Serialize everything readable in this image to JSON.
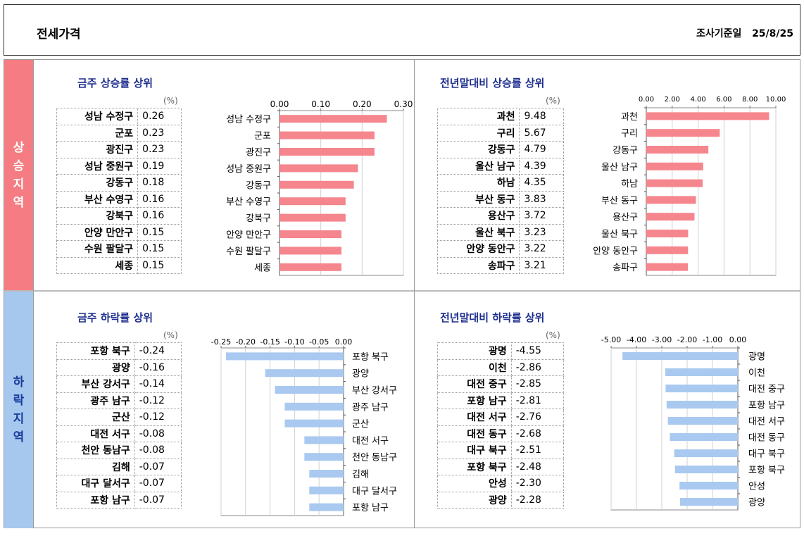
{
  "header": {
    "title": "전세가격",
    "survey_label": "조사기준일",
    "survey_date": "25/8/25"
  },
  "sections": {
    "rise_label": "상승지역",
    "fall_label": "하락지역"
  },
  "unit": "(%)",
  "chart_data": [
    {
      "id": "week-rise",
      "type": "bar",
      "title": "금주 상승률 상위",
      "orientation": "horizontal",
      "xlim": [
        0,
        0.3
      ],
      "ticks": [
        0.0,
        0.1,
        0.2,
        0.3
      ],
      "tick_labels": [
        "0.00",
        "0.10",
        "0.20",
        "0.30"
      ],
      "axis_position": "top",
      "bar_color": "#f5868d",
      "rows": [
        {
          "name": "성남 수정구",
          "value": 0.26,
          "label": "0.26"
        },
        {
          "name": "군포",
          "value": 0.23,
          "label": "0.23"
        },
        {
          "name": "광진구",
          "value": 0.23,
          "label": "0.23"
        },
        {
          "name": "성남 중원구",
          "value": 0.19,
          "label": "0.19"
        },
        {
          "name": "강동구",
          "value": 0.18,
          "label": "0.18"
        },
        {
          "name": "부산 수영구",
          "value": 0.16,
          "label": "0.16"
        },
        {
          "name": "강북구",
          "value": 0.16,
          "label": "0.16"
        },
        {
          "name": "안양 만안구",
          "value": 0.15,
          "label": "0.15"
        },
        {
          "name": "수원 팔달구",
          "value": 0.15,
          "label": "0.15"
        },
        {
          "name": "세종",
          "value": 0.15,
          "label": "0.15"
        }
      ]
    },
    {
      "id": "ytd-rise",
      "type": "bar",
      "title": "전년말대비 상승률 상위",
      "orientation": "horizontal",
      "xlim": [
        0,
        10
      ],
      "ticks": [
        0,
        2,
        4,
        6,
        8,
        10
      ],
      "tick_labels": [
        "0.00",
        "2.00",
        "4.00",
        "6.00",
        "8.00",
        "10.00"
      ],
      "axis_position": "top",
      "bar_color": "#f5868d",
      "rows": [
        {
          "name": "과천",
          "value": 9.48,
          "label": "9.48"
        },
        {
          "name": "구리",
          "value": 5.67,
          "label": "5.67"
        },
        {
          "name": "강동구",
          "value": 4.79,
          "label": "4.79"
        },
        {
          "name": "울산 남구",
          "value": 4.39,
          "label": "4.39"
        },
        {
          "name": "하남",
          "value": 4.35,
          "label": "4.35"
        },
        {
          "name": "부산 동구",
          "value": 3.83,
          "label": "3.83"
        },
        {
          "name": "용산구",
          "value": 3.72,
          "label": "3.72"
        },
        {
          "name": "울산 북구",
          "value": 3.23,
          "label": "3.23"
        },
        {
          "name": "안양 동안구",
          "value": 3.22,
          "label": "3.22"
        },
        {
          "name": "송파구",
          "value": 3.21,
          "label": "3.21"
        }
      ]
    },
    {
      "id": "week-fall",
      "type": "bar",
      "title": "금주 하락률 상위",
      "orientation": "horizontal",
      "xlim": [
        -0.25,
        0
      ],
      "ticks": [
        -0.25,
        -0.2,
        -0.15,
        -0.1,
        -0.05,
        0.0
      ],
      "tick_labels": [
        "-0.25",
        "-0.20",
        "-0.15",
        "-0.10",
        "-0.05",
        "0.00"
      ],
      "axis_position": "top",
      "bar_color": "#a9c9f0",
      "rows": [
        {
          "name": "포항 북구",
          "value": -0.24,
          "label": "-0.24"
        },
        {
          "name": "광양",
          "value": -0.16,
          "label": "-0.16"
        },
        {
          "name": "부산 강서구",
          "value": -0.14,
          "label": "-0.14"
        },
        {
          "name": "광주 남구",
          "value": -0.12,
          "label": "-0.12"
        },
        {
          "name": "군산",
          "value": -0.12,
          "label": "-0.12"
        },
        {
          "name": "대전 서구",
          "value": -0.08,
          "label": "-0.08"
        },
        {
          "name": "천안 동남구",
          "value": -0.08,
          "label": "-0.08"
        },
        {
          "name": "김해",
          "value": -0.07,
          "label": "-0.07"
        },
        {
          "name": "대구 달서구",
          "value": -0.07,
          "label": "-0.07"
        },
        {
          "name": "포항 남구",
          "value": -0.07,
          "label": "-0.07"
        }
      ]
    },
    {
      "id": "ytd-fall",
      "type": "bar",
      "title": "전년말대비 하락률 상위",
      "orientation": "horizontal",
      "xlim": [
        -5,
        0
      ],
      "ticks": [
        -5,
        -4,
        -3,
        -2,
        -1,
        0
      ],
      "tick_labels": [
        "-5.00",
        "-4.00",
        "-3.00",
        "-2.00",
        "-1.00",
        "0.00"
      ],
      "axis_position": "top",
      "bar_color": "#a9c9f0",
      "rows": [
        {
          "name": "광명",
          "value": -4.55,
          "label": "-4.55"
        },
        {
          "name": "이천",
          "value": -2.86,
          "label": "-2.86"
        },
        {
          "name": "대전 중구",
          "value": -2.85,
          "label": "-2.85"
        },
        {
          "name": "포항 남구",
          "value": -2.81,
          "label": "-2.81"
        },
        {
          "name": "대전 서구",
          "value": -2.76,
          "label": "-2.76"
        },
        {
          "name": "대전 동구",
          "value": -2.68,
          "label": "-2.68"
        },
        {
          "name": "대구 북구",
          "value": -2.51,
          "label": "-2.51"
        },
        {
          "name": "포항 북구",
          "value": -2.48,
          "label": "-2.48"
        },
        {
          "name": "안성",
          "value": -2.3,
          "label": "-2.30"
        },
        {
          "name": "광양",
          "value": -2.28,
          "label": "-2.28"
        }
      ]
    }
  ]
}
